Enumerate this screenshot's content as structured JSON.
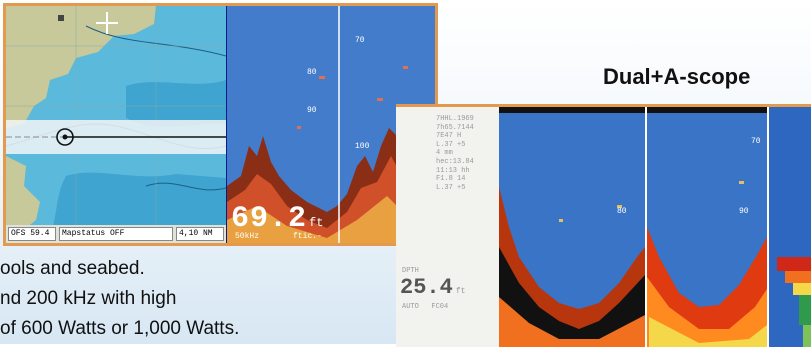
{
  "single_display": {
    "chart_status": [
      "OFS  59.4",
      "Mapstatus OFF",
      "4,10 NM"
    ],
    "depth_value": "69.2",
    "depth_unit": "ft",
    "sonar_labels": [
      "70",
      "80",
      "90",
      "100"
    ],
    "sonar_bottom_labels": [
      "50kHz",
      "ftic.-"
    ]
  },
  "mode_heading": "Dual+A-scope",
  "caption_lines": [
    "ools and seabed.",
    "nd 200 kHz with high",
    "of 600 Watts or 1,000 Watts."
  ],
  "dual_display": {
    "readout_lines": [
      "7HHL.1969",
      "7h65.7144",
      "7E47 H",
      "L.37 +5",
      "4 mm",
      "hec:13.84",
      "11:13 hh",
      "F1.8 14",
      "L.37 +5"
    ],
    "depth_label": "DPTH",
    "depth_value": "25.4",
    "depth_unit": "ft",
    "depth_sub": "AUTO   FC04",
    "sonar_labels": [
      "70",
      "80",
      "90"
    ]
  },
  "colors": {
    "frame_border": "#e39a4e",
    "sonar_water": "#3f78c8",
    "chart_land": "#c8c99a",
    "chart_water": "#5bb9dc"
  }
}
